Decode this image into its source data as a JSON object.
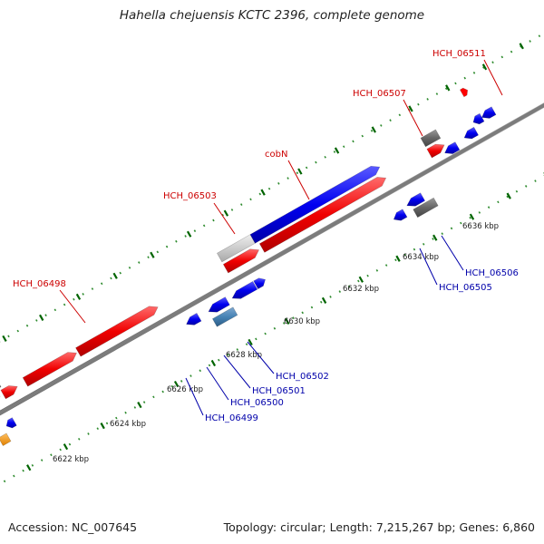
{
  "title": "Hahella chejuensis KCTC 2396, complete genome",
  "footer": {
    "accession": "Accession: NC_007645",
    "summary": "Topology: circular; Length: 7,215,267 bp; Genes: 6,860"
  },
  "colors": {
    "forward_cds": "#ff0000",
    "forward_gene": "#0000ff",
    "rna": "#666666",
    "pseudo": "#cccccc",
    "highlight": "#4682b4",
    "other": "#ff9900",
    "backbone": "#888888",
    "tick": "#006400",
    "label_forward": "#cc0000",
    "label_reverse": "#0000aa"
  },
  "ticks": [
    {
      "label": "6622 kbp"
    },
    {
      "label": "6624 kbp"
    },
    {
      "label": "6626 kbp"
    },
    {
      "label": "6628 kbp"
    },
    {
      "label": "6630 kbp"
    },
    {
      "label": "6632 kbp"
    },
    {
      "label": "6634 kbp"
    },
    {
      "label": "6636 kbp"
    }
  ],
  "gene_labels_upper": [
    {
      "name": "HCH_06498"
    },
    {
      "name": "HCH_06503"
    },
    {
      "name": "cobN"
    },
    {
      "name": "HCH_06507"
    },
    {
      "name": "HCH_06511"
    }
  ],
  "gene_labels_lower": [
    {
      "name": "HCH_06499"
    },
    {
      "name": "HCH_06500"
    },
    {
      "name": "HCH_06501"
    },
    {
      "name": "HCH_06502"
    },
    {
      "name": "HCH_06505"
    },
    {
      "name": "HCH_06506"
    }
  ]
}
